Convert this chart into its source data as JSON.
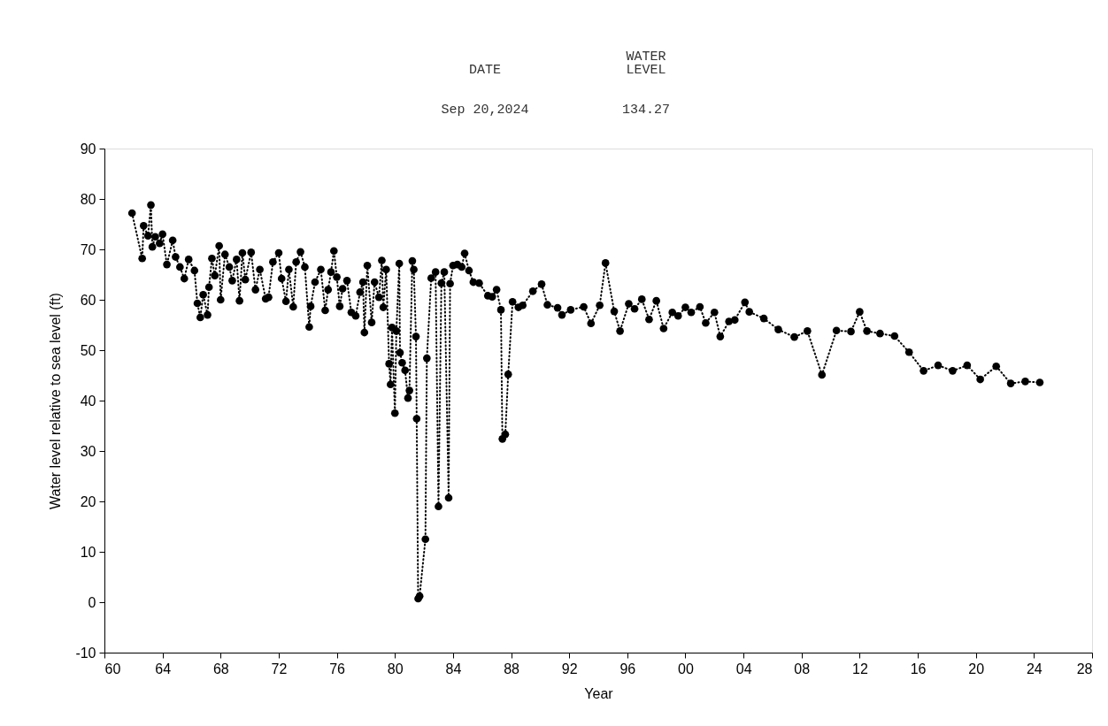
{
  "chart_data": {
    "type": "line",
    "xlabel": "Year",
    "ylabel": "Water level relative to sea level (ft)",
    "annotations": [
      "DATE",
      "WATER\nLEVEL",
      "Sep 20,2024",
      "134.27"
    ],
    "xlim": [
      1960,
      2028
    ],
    "xticks": [
      {
        "value": 1960,
        "label": "60"
      },
      {
        "value": 1964,
        "label": "64"
      },
      {
        "value": 1968,
        "label": "68"
      },
      {
        "value": 1972,
        "label": "72"
      },
      {
        "value": 1976,
        "label": "76"
      },
      {
        "value": 1980,
        "label": "80"
      },
      {
        "value": 1984,
        "label": "84"
      },
      {
        "value": 1988,
        "label": "88"
      },
      {
        "value": 1992,
        "label": "92"
      },
      {
        "value": 1996,
        "label": "96"
      },
      {
        "value": 2000,
        "label": "00"
      },
      {
        "value": 2004,
        "label": "04"
      },
      {
        "value": 2008,
        "label": "08"
      },
      {
        "value": 2012,
        "label": "12"
      },
      {
        "value": 2016,
        "label": "16"
      },
      {
        "value": 2020,
        "label": "20"
      },
      {
        "value": 2024,
        "label": "24"
      },
      {
        "value": 2028,
        "label": "28"
      }
    ],
    "ylim": [
      -10,
      90
    ],
    "yticks": [
      -10,
      0,
      10,
      20,
      30,
      40,
      50,
      60,
      70,
      80,
      90
    ],
    "grid": false,
    "marker": "circle",
    "line_style": "dotted",
    "series": [
      {
        "color": "#000000",
        "x": [
          1961.9,
          1962.6,
          1962.7,
          1963.0,
          1963.2,
          1963.3,
          1963.5,
          1963.8,
          1964.0,
          1964.3,
          1964.7,
          1964.9,
          1965.2,
          1965.5,
          1965.8,
          1966.2,
          1966.4,
          1966.6,
          1966.8,
          1967.1,
          1967.2,
          1967.4,
          1967.6,
          1967.9,
          1968.0,
          1968.3,
          1968.6,
          1968.8,
          1969.1,
          1969.3,
          1969.5,
          1969.7,
          1970.1,
          1970.4,
          1970.7,
          1971.1,
          1971.3,
          1971.6,
          1972.0,
          1972.2,
          1972.5,
          1972.7,
          1973.0,
          1973.2,
          1973.5,
          1973.8,
          1974.1,
          1974.2,
          1974.5,
          1974.9,
          1975.2,
          1975.4,
          1975.6,
          1975.8,
          1976.0,
          1976.2,
          1976.4,
          1976.7,
          1977.0,
          1977.3,
          1977.6,
          1977.8,
          1977.9,
          1978.1,
          1978.4,
          1978.6,
          1978.9,
          1979.1,
          1979.2,
          1979.4,
          1979.6,
          1979.7,
          1979.8,
          1980.0,
          1980.1,
          1980.3,
          1980.35,
          1980.5,
          1980.7,
          1980.9,
          1981.0,
          1981.2,
          1981.3,
          1981.45,
          1981.5,
          1981.6,
          1981.7,
          1982.1,
          1982.2,
          1982.5,
          1982.8,
          1983.0,
          1983.2,
          1983.4,
          1983.7,
          1983.8,
          1984.0,
          1984.3,
          1984.6,
          1984.8,
          1985.1,
          1985.4,
          1985.8,
          1986.4,
          1986.7,
          1987.0,
          1987.3,
          1987.4,
          1987.6,
          1987.8,
          1988.1,
          1988.5,
          1988.8,
          1989.5,
          1990.1,
          1990.5,
          1991.2,
          1991.5,
          1992.1,
          1993.0,
          1993.5,
          1994.1,
          1994.5,
          1995.1,
          1995.5,
          1996.1,
          1996.5,
          1997.0,
          1997.5,
          1998.0,
          1998.5,
          1999.1,
          1999.5,
          2000.0,
          2000.4,
          2001.0,
          2001.4,
          2002.0,
          2002.4,
          2003.0,
          2003.4,
          2004.1,
          2004.4,
          2005.4,
          2006.4,
          2007.5,
          2008.4,
          2009.4,
          2010.4,
          2011.4,
          2012.0,
          2012.5,
          2013.4,
          2014.4,
          2015.4,
          2016.4,
          2017.4,
          2018.4,
          2019.4,
          2020.3,
          2021.4,
          2022.4,
          2023.4,
          2024.4
        ],
        "values": [
          77.2,
          68.2,
          74.7,
          72.7,
          78.8,
          70.5,
          72.5,
          71.2,
          73,
          67,
          71.8,
          68.5,
          66.5,
          64.2,
          68,
          65.8,
          59.3,
          56.5,
          61,
          57,
          62.5,
          68.2,
          64.8,
          70.7,
          60,
          69,
          66.5,
          63.8,
          68,
          59.8,
          69.3,
          64,
          69.4,
          62,
          66,
          60.2,
          60.5,
          67.5,
          69.3,
          64.2,
          59.7,
          66,
          58.6,
          67.5,
          69.5,
          66.5,
          54.6,
          58.7,
          63.5,
          66,
          57.9,
          62,
          65.5,
          69.7,
          64.5,
          58.7,
          62.2,
          63.8,
          57.5,
          56.8,
          61.5,
          63.5,
          53.5,
          66.8,
          55.5,
          63.5,
          60.5,
          67.8,
          58.5,
          66,
          47.3,
          43.2,
          54.5,
          37.5,
          53.8,
          67.2,
          49.5,
          47.5,
          46,
          40.5,
          42,
          67.7,
          66,
          52.7,
          36.4,
          0.7,
          1.2,
          12.5,
          48.4,
          64.3,
          65.5,
          19,
          63.3,
          65.5,
          20.7,
          63.2,
          66.8,
          67,
          66.5,
          69.2,
          65.8,
          63.5,
          63.3,
          60.8,
          60.6,
          62,
          58,
          32.4,
          33.3,
          45.2,
          59.6,
          58.5,
          58.9,
          61.7,
          63.1,
          59,
          58.4,
          57,
          58,
          58.6,
          55.3,
          58.9,
          67.3,
          57.7,
          53.8,
          59.2,
          58.2,
          60.1,
          56.1,
          59.8,
          54.3,
          57.5,
          56.8,
          58.5,
          57.5,
          58.6,
          55.4,
          57.5,
          52.7,
          55.7,
          56,
          59.5,
          57.6,
          56.3,
          54.1,
          52.6,
          53.8,
          45.1,
          53.9,
          53.7,
          57.6,
          53.8,
          53.3,
          52.8,
          49.6,
          45.9,
          47,
          45.9,
          47,
          44.2,
          46.8,
          43.4,
          43.8,
          43.6
        ]
      }
    ]
  }
}
